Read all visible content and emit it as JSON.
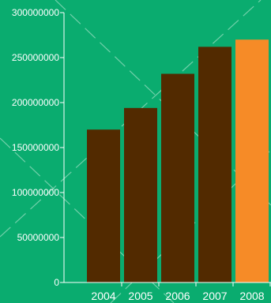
{
  "chart_data": {
    "type": "bar",
    "categories": [
      "2004",
      "2005",
      "2006",
      "2007",
      "2008"
    ],
    "values": [
      170000000,
      194000000,
      232000000,
      262000000,
      270000000
    ],
    "ylim": [
      0,
      300000000
    ],
    "yticks": [
      0,
      50000000,
      100000000,
      150000000,
      200000000,
      250000000,
      300000000
    ],
    "ytick_labels": [
      "0",
      "50000000",
      "100000000",
      "150000000",
      "200000000",
      "250000000",
      "300000000"
    ],
    "title": "",
    "xlabel": "",
    "ylabel": "",
    "grid": false,
    "colors": {
      "background": "#0aac6f",
      "bar": "#522a00",
      "highlight_bar": "#f68b27",
      "axis": "#ffffff",
      "text": "#ffffff",
      "decoration": "#9fe0c4"
    },
    "highlight_index": 4
  }
}
